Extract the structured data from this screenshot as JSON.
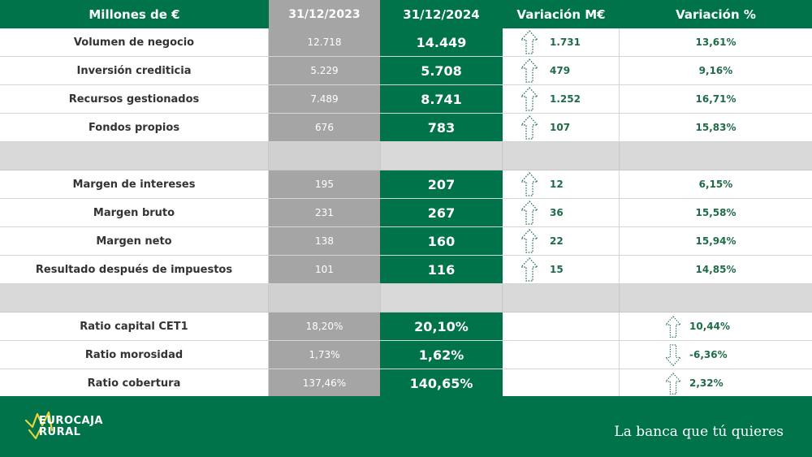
{
  "header": {
    "label_col": "Millones de €",
    "col_2023": "31/12/2023",
    "col_2024": "31/12/2024",
    "col_var_abs": "Variación M€",
    "col_var_pct": "Variación %"
  },
  "rows": [
    {
      "label": "Volumen de negocio",
      "v2023": "12.718",
      "v2024": "14.449",
      "var_abs": "1.731",
      "var_pct": "13,61%",
      "direction": "up"
    },
    {
      "label": "Inversión crediticia",
      "v2023": "5.229",
      "v2024": "5.708",
      "var_abs": "479",
      "var_pct": "9,16%",
      "direction": "up"
    },
    {
      "label": "Recursos gestionados",
      "v2023": "7.489",
      "v2024": "8.741",
      "var_abs": "1.252",
      "var_pct": "16,71%",
      "direction": "up"
    },
    {
      "label": "Fondos propios",
      "v2023": "676",
      "v2024": "783",
      "var_abs": "107",
      "var_pct": "15,83%",
      "direction": "up"
    },
    {
      "label": "Margen de intereses",
      "v2023": "195",
      "v2024": "207",
      "var_abs": "12",
      "var_pct": "6,15%",
      "direction": "up"
    },
    {
      "label": "Margen bruto",
      "v2023": "231",
      "v2024": "267",
      "var_abs": "36",
      "var_pct": "15,58%",
      "direction": "up"
    },
    {
      "label": "Margen neto",
      "v2023": "138",
      "v2024": "160",
      "var_abs": "22",
      "var_pct": "15,94%",
      "direction": "up"
    },
    {
      "label": "Resultado después de impuestos",
      "v2023": "101",
      "v2024": "116",
      "var_abs": "15",
      "var_pct": "14,85%",
      "direction": "up"
    },
    {
      "label": "Ratio capital CET1",
      "v2023": "18,20%",
      "v2024": "20,10%",
      "var_abs": "",
      "var_pct": "10,44%",
      "direction": "up"
    },
    {
      "label": "Ratio morosidad",
      "v2023": "1,73%",
      "v2024": "1,62%",
      "var_abs": "",
      "var_pct": "-6,36%",
      "direction": "down"
    },
    {
      "label": "Ratio cobertura",
      "v2023": "137,46%",
      "v2024": "140,65%",
      "var_abs": "",
      "var_pct": "2,32%",
      "direction": "up"
    }
  ],
  "footer": {
    "logo_line1": "EUROCAJA",
    "logo_line2": "RURAL",
    "tagline": "La banca que tú quieres"
  },
  "colors": {
    "brand_green": "#00734a",
    "gray_2023": "#a5a5a5",
    "spacer_gray": "#d9d9d9",
    "logo_yellow": "#e8d43a"
  }
}
